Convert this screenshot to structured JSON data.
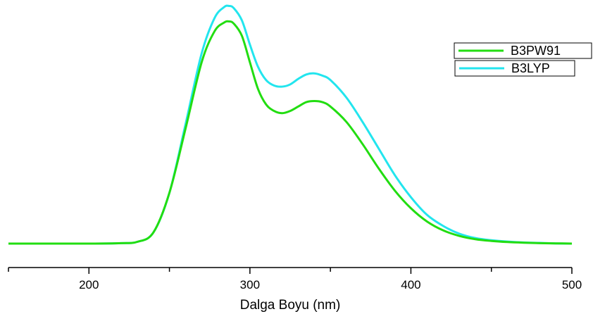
{
  "chart_data": {
    "type": "line",
    "xlabel": "Dalga Boyu (nm)",
    "xlim": [
      150,
      500
    ],
    "x_ticks": [
      200,
      300,
      400,
      500
    ],
    "x_tick_labels": [
      "200",
      "300",
      "400",
      "500"
    ],
    "ylim": [
      0,
      1.05
    ],
    "grid": false,
    "legend_position": "top-right",
    "series": [
      {
        "name": "B3PW91",
        "color": "#22dd11",
        "x": [
          150,
          200,
          220,
          230,
          240,
          250,
          260,
          270,
          278,
          284,
          287,
          290,
          295,
          300,
          305,
          310,
          315,
          320,
          325,
          330,
          335,
          340,
          345,
          350,
          360,
          370,
          380,
          390,
          400,
          410,
          420,
          430,
          440,
          450,
          460,
          470,
          480,
          490,
          500
        ],
        "y": [
          0.0,
          0.0,
          0.002,
          0.008,
          0.05,
          0.23,
          0.52,
          0.82,
          0.96,
          1.0,
          1.005,
          0.995,
          0.94,
          0.82,
          0.7,
          0.63,
          0.6,
          0.59,
          0.6,
          0.62,
          0.64,
          0.645,
          0.64,
          0.62,
          0.55,
          0.45,
          0.34,
          0.24,
          0.16,
          0.1,
          0.06,
          0.035,
          0.02,
          0.012,
          0.007,
          0.004,
          0.002,
          0.001,
          0.0
        ]
      },
      {
        "name": "B3LYP",
        "color": "#22e5ee",
        "x": [
          150,
          200,
          220,
          230,
          240,
          250,
          260,
          270,
          278,
          284,
          287,
          290,
          295,
          300,
          305,
          310,
          315,
          320,
          325,
          330,
          335,
          340,
          345,
          350,
          360,
          370,
          380,
          390,
          400,
          410,
          420,
          430,
          440,
          450,
          460,
          470,
          480,
          490,
          500
        ],
        "y": [
          0.0,
          0.0,
          0.002,
          0.008,
          0.05,
          0.23,
          0.54,
          0.86,
          1.02,
          1.07,
          1.075,
          1.065,
          1.01,
          0.9,
          0.8,
          0.74,
          0.715,
          0.71,
          0.72,
          0.745,
          0.765,
          0.77,
          0.76,
          0.74,
          0.66,
          0.55,
          0.43,
          0.31,
          0.21,
          0.13,
          0.08,
          0.045,
          0.025,
          0.015,
          0.009,
          0.005,
          0.003,
          0.001,
          0.0
        ]
      }
    ]
  }
}
